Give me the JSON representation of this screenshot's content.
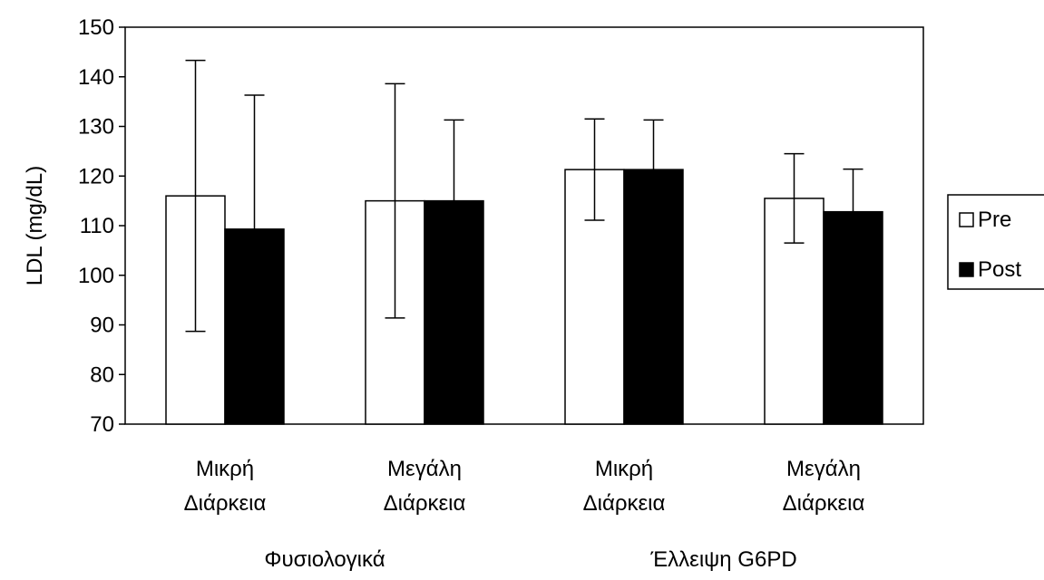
{
  "chart_data": {
    "type": "bar",
    "title": "",
    "xlabel": "",
    "ylabel": "LDL (mg/dL)",
    "ylim": [
      70,
      150
    ],
    "yticks": [
      70,
      80,
      90,
      100,
      110,
      120,
      130,
      140,
      150
    ],
    "grid": false,
    "legend_position": "right",
    "categories": [
      [
        "Μικρή",
        "Διάρκεια"
      ],
      [
        "Μεγάλη",
        "Διάρκεια"
      ],
      [
        "Μικρή",
        "Διάρκεια"
      ],
      [
        "Μεγάλη",
        "Διάρκεια"
      ]
    ],
    "groups": [
      "Φυσιολογικά",
      "Έλλειψη G6PD"
    ],
    "series": [
      {
        "name": "Pre",
        "color": "#ffffff",
        "values": [
          116,
          115,
          121.3,
          115.5
        ],
        "errors": [
          27.3,
          23.6,
          10.2,
          9
        ]
      },
      {
        "name": "Post",
        "color": "#000000",
        "values": [
          109.3,
          115,
          121.3,
          112.8
        ],
        "errors": [
          27,
          16.3,
          10,
          8.6
        ]
      }
    ]
  }
}
